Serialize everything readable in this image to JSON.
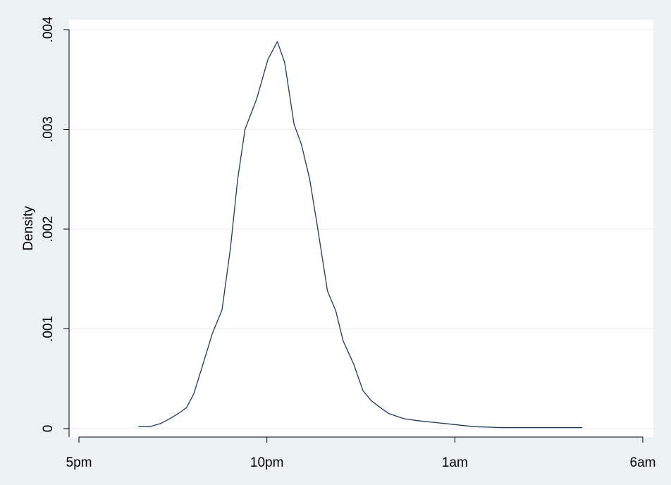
{
  "chart_data": {
    "type": "line",
    "xlabel": "",
    "ylabel": "Density",
    "xlim": [
      0,
      540
    ],
    "ylim": [
      0,
      0.004
    ],
    "x_ticks": [
      {
        "value": 0,
        "label": "5pm"
      },
      {
        "value": 180,
        "label": "10pm"
      },
      {
        "value": 360,
        "label": "1am"
      },
      {
        "value": 540,
        "label": "6am"
      }
    ],
    "y_ticks": [
      {
        "value": 0,
        "label": "0"
      },
      {
        "value": 0.001,
        "label": ".001"
      },
      {
        "value": 0.002,
        "label": ".002"
      },
      {
        "value": 0.003,
        "label": ".003"
      },
      {
        "value": 0.004,
        "label": ".004"
      }
    ],
    "grid": true,
    "colors": {
      "line": "#1f3a60",
      "grid": "#e6eef0",
      "plot_bg": "#ffffff",
      "outer_bg": "#eaf2f3"
    },
    "series": [
      {
        "x": [
          57,
          68,
          78,
          87,
          95,
          103,
          110,
          118,
          128,
          137,
          145,
          152,
          159,
          170,
          181,
          190,
          197,
          206,
          213,
          221,
          228,
          238,
          246,
          253,
          263,
          272,
          280,
          290,
          297,
          311,
          324,
          342,
          360,
          378,
          405,
          450,
          480,
          482
        ],
        "y": [
          2e-05,
          2e-05,
          5e-05,
          0.0001,
          0.00015,
          0.00021,
          0.00035,
          0.00062,
          0.00096,
          0.00119,
          0.0018,
          0.0025,
          0.003,
          0.0033,
          0.0037,
          0.00388,
          0.00367,
          0.00305,
          0.00285,
          0.0025,
          0.00205,
          0.00138,
          0.00118,
          0.00088,
          0.00065,
          0.00038,
          0.00028,
          0.0002,
          0.00015,
          0.0001,
          8e-05,
          6e-05,
          4e-05,
          2e-05,
          1e-05,
          1e-05,
          1e-05,
          1e-05
        ]
      }
    ]
  }
}
